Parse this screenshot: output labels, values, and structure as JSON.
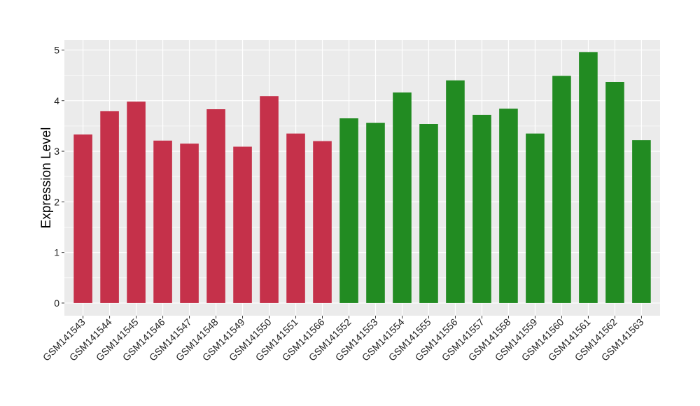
{
  "chart_data": {
    "type": "bar",
    "xlabel": "",
    "ylabel": "Expression Level",
    "ylim": [
      -0.25,
      5.2
    ],
    "yticks": [
      0,
      1,
      2,
      3,
      4,
      5
    ],
    "grid": true,
    "legend": "none",
    "categories": [
      "GSM141543",
      "GSM141544",
      "GSM141545",
      "GSM141546",
      "GSM141547",
      "GSM141548",
      "GSM141549",
      "GSM141550",
      "GSM141551",
      "GSM141566",
      "GSM141552",
      "GSM141553",
      "GSM141554",
      "GSM141555",
      "GSM141556",
      "GSM141557",
      "GSM141558",
      "GSM141559",
      "GSM141560",
      "GSM141561",
      "GSM141562",
      "GSM141563"
    ],
    "values": [
      3.33,
      3.79,
      3.98,
      3.21,
      3.15,
      3.83,
      3.09,
      4.09,
      3.35,
      3.2,
      3.65,
      3.56,
      4.16,
      3.54,
      4.4,
      3.72,
      3.84,
      3.35,
      4.49,
      4.96,
      4.37,
      3.22
    ],
    "group_colors": [
      "#C5314A",
      "#C5314A",
      "#C5314A",
      "#C5314A",
      "#C5314A",
      "#C5314A",
      "#C5314A",
      "#C5314A",
      "#C5314A",
      "#C5314A",
      "#228B22",
      "#228B22",
      "#228B22",
      "#228B22",
      "#228B22",
      "#228B22",
      "#228B22",
      "#228B22",
      "#228B22",
      "#228B22",
      "#228B22",
      "#228B22"
    ],
    "panel_background": "#EBEBEB",
    "grid_color": "#FFFFFF"
  }
}
